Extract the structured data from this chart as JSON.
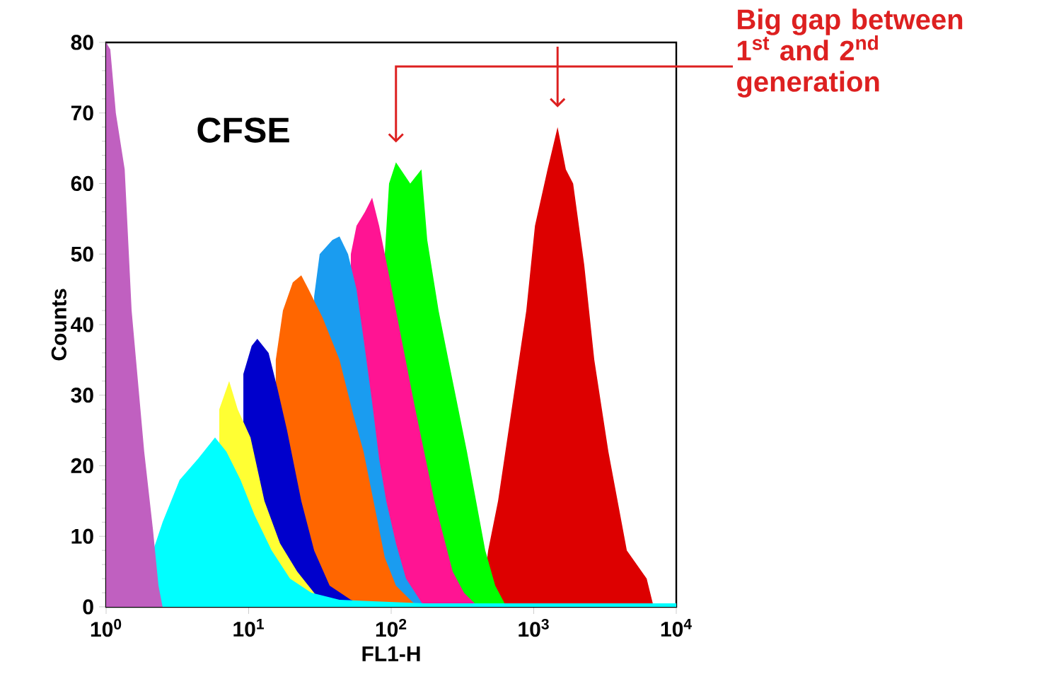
{
  "chart_data": {
    "type": "area",
    "xlabel": "FL1-H",
    "ylabel": "Counts",
    "log": "x",
    "xlim": [
      1,
      10000
    ],
    "ylim": [
      0,
      80
    ],
    "xticks": [
      {
        "value": 1,
        "label": "10$^{0}$"
      },
      {
        "value": 10,
        "label": "10$^{1}$"
      },
      {
        "value": 100,
        "label": "10$^{2}$"
      },
      {
        "value": 1000,
        "label": "10$^{3}$"
      },
      {
        "value": 10000,
        "label": "10$^{4}$"
      }
    ],
    "yticks": [
      0,
      10,
      20,
      30,
      40,
      50,
      60,
      70,
      80
    ],
    "annotations": [
      "CFSE",
      "Big gap between 1$^{st}$ and 2$^{nd}$ generation"
    ],
    "series": [
      {
        "color": "#c060c0",
        "x": [
          1,
          1.07,
          1.17,
          1.35,
          1.51,
          1.85,
          2.13,
          2.33,
          2.49
        ],
        "values": [
          80,
          79,
          70,
          62,
          42,
          22,
          11,
          3,
          0
        ]
      },
      {
        "color": "#00ffff",
        "x": [
          1.58,
          2.49,
          3.28,
          4.42,
          5.81,
          6.98,
          8.77,
          11.0,
          14.5,
          19.5,
          27.5,
          43.4,
          171,
          10000
        ],
        "values": [
          0,
          12,
          18,
          21,
          24,
          22,
          18,
          13,
          8,
          4,
          2,
          1,
          0.5,
          0.5
        ]
      },
      {
        "color": "#ffff33",
        "x": [
          6.22,
          7.3,
          8.38,
          10.3,
          12.9,
          16.6,
          21.9,
          34.5
        ],
        "values": [
          28,
          32,
          28,
          24,
          15,
          9,
          5,
          0
        ]
      },
      {
        "color": "#0000cc",
        "x": [
          9.18,
          10.5,
          11.5,
          13.8,
          15.9,
          18.6,
          23.4,
          28.8,
          37.0,
          52.1,
          71.8
        ],
        "values": [
          33,
          37,
          38,
          36,
          31,
          25,
          15,
          8,
          3,
          1,
          0
        ]
      },
      {
        "color": "#ff6600",
        "x": [
          15.5,
          17.4,
          20.4,
          23.4,
          26.3,
          33.0,
          43.4,
          54.6,
          64.0,
          76.9,
          90.2,
          108,
          136,
          153
        ],
        "values": [
          35,
          42,
          46,
          47,
          45,
          41,
          35,
          27,
          22,
          14,
          7,
          3,
          1,
          0
        ]
      },
      {
        "color": "#1a9cf0",
        "x": [
          28.8,
          31.5,
          38.7,
          43.4,
          49.8,
          57.1,
          64.0,
          73.5,
          82.3,
          92.3,
          108,
          127,
          171
        ],
        "values": [
          44,
          50,
          52,
          52.5,
          50,
          45,
          38,
          29,
          21,
          15,
          9,
          4,
          0
        ]
      },
      {
        "color": "#ff1493",
        "x": [
          52.1,
          57.1,
          65.5,
          73.5,
          82.3,
          96.6,
          108,
          146,
          201,
          270,
          324,
          408
        ],
        "values": [
          50,
          54,
          56,
          58,
          54,
          47,
          42,
          28.5,
          15,
          5,
          2,
          0
        ]
      },
      {
        "color": "#00ff00",
        "x": [
          90.2,
          96.6,
          108,
          136,
          163,
          179,
          215,
          252,
          340,
          457,
          537,
          644
        ],
        "values": [
          50,
          60,
          63,
          60,
          62,
          52,
          42,
          35,
          22,
          8,
          3,
          0
        ]
      },
      {
        "color": "#dd0000",
        "x": [
          427,
          479,
          562,
          706,
          887,
          1020,
          1250,
          1470,
          1680,
          1890,
          2260,
          2660,
          3340,
          4500,
          6200,
          6940
        ],
        "values": [
          0,
          8,
          15,
          28.5,
          42,
          54,
          62,
          68,
          62,
          60,
          48.5,
          35,
          22,
          8,
          4,
          0
        ]
      }
    ]
  }
}
